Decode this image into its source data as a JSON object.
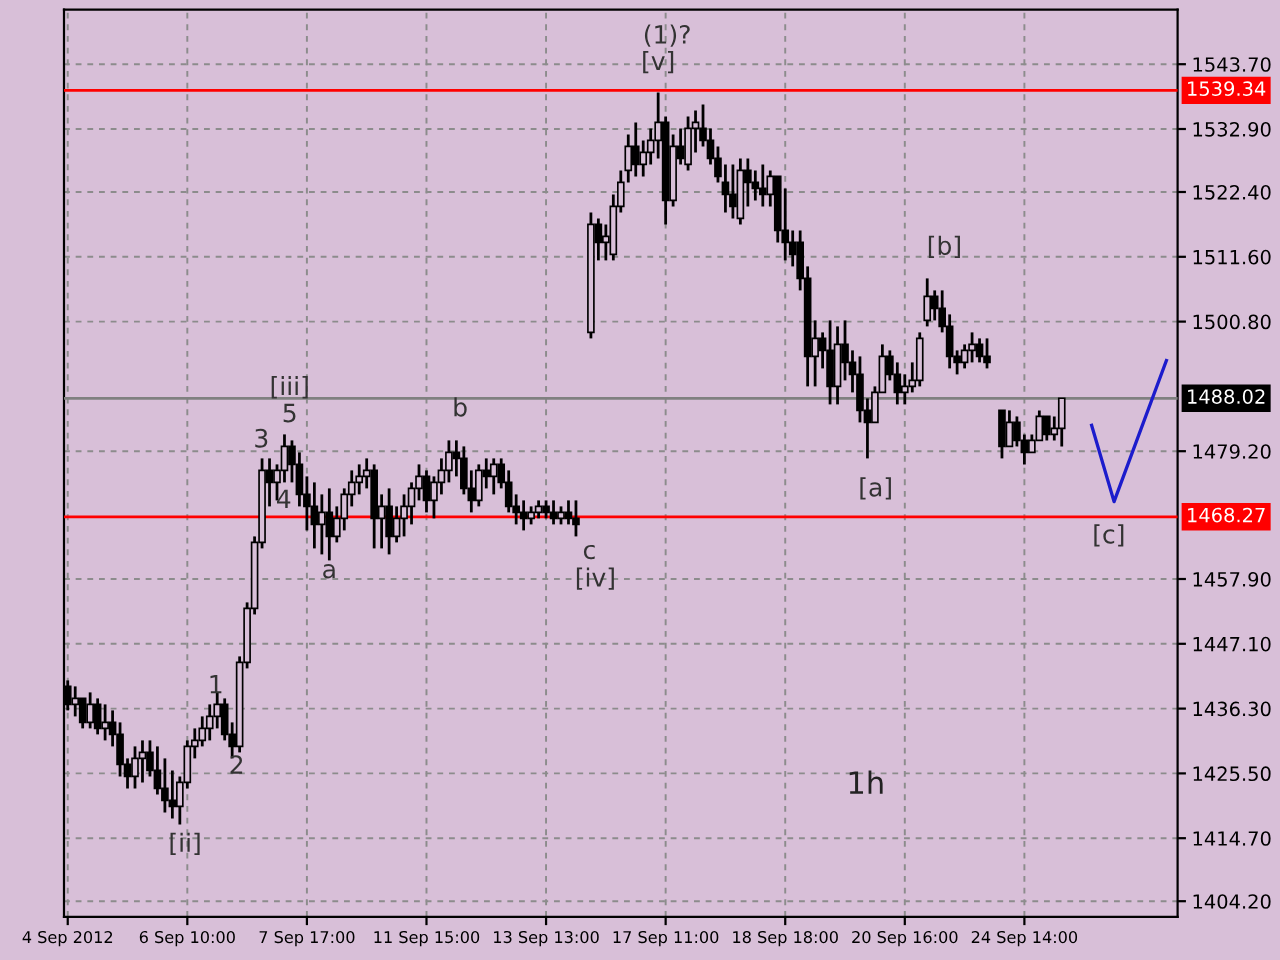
{
  "chart_data": {
    "type": "candlestick",
    "color": "#000000",
    "categories": [
      "4 Sep 2012",
      null,
      null,
      null,
      null,
      null,
      null,
      null,
      null,
      null,
      null,
      null,
      null,
      null,
      null,
      null,
      "6 Sep 10:00",
      null,
      null,
      null,
      null,
      null,
      null,
      null,
      null,
      null,
      null,
      null,
      null,
      null,
      null,
      null,
      "7 Sep 17:00",
      null,
      null,
      null,
      null,
      null,
      null,
      null,
      null,
      null,
      null,
      null,
      null,
      null,
      null,
      null,
      "11 Sep 15:00",
      null,
      null,
      null,
      null,
      null,
      null,
      null,
      null,
      null,
      null,
      null,
      null,
      null,
      null,
      null,
      "13 Sep 13:00",
      null,
      null,
      null,
      null,
      null,
      null,
      null,
      null,
      null,
      null,
      null,
      null,
      null,
      null,
      null,
      "17 Sep 11:00",
      null,
      null,
      null,
      null,
      null,
      null,
      null,
      null,
      null,
      null,
      null,
      null,
      null,
      null,
      null,
      "18 Sep 18:00",
      null,
      null,
      null,
      null,
      null,
      null,
      null,
      null,
      null,
      null,
      null,
      null,
      null,
      null,
      null,
      "20 Sep 16:00",
      null,
      null,
      null,
      null,
      null,
      null,
      null,
      null,
      null,
      null,
      null,
      null,
      null,
      null,
      null,
      "24 Sep 14:00",
      null,
      null,
      null,
      null,
      null,
      null,
      null,
      null,
      null,
      null,
      null,
      null,
      null,
      null,
      null,
      null,
      null,
      null,
      null,
      null
    ],
    "ohlc": [
      [
        1440,
        1441,
        1436,
        1437
      ],
      [
        1437,
        1440,
        1435,
        1438
      ],
      [
        1438,
        1438,
        1433,
        1434
      ],
      [
        1434,
        1439,
        1433,
        1437
      ],
      [
        1437,
        1438,
        1432,
        1433
      ],
      [
        1433,
        1437,
        1431,
        1434
      ],
      [
        1434,
        1436,
        1430,
        1432
      ],
      [
        1432,
        1434,
        1425,
        1427
      ],
      [
        1427,
        1428,
        1423,
        1425
      ],
      [
        1425,
        1430,
        1423,
        1428
      ],
      [
        1428,
        1431,
        1424,
        1429
      ],
      [
        1429,
        1431,
        1425,
        1426
      ],
      [
        1426,
        1430,
        1422,
        1423
      ],
      [
        1423,
        1428,
        1419,
        1421
      ],
      [
        1421,
        1426,
        1418,
        1420
      ],
      [
        1420,
        1425,
        1417,
        1424
      ],
      [
        1424,
        1431,
        1423,
        1430
      ],
      [
        1430,
        1433,
        1428,
        1431
      ],
      [
        1431,
        1435,
        1430,
        1433
      ],
      [
        1433,
        1437,
        1431,
        1435
      ],
      [
        1435,
        1439,
        1433,
        1437
      ],
      [
        1437,
        1438,
        1431,
        1432
      ],
      [
        1432,
        1434,
        1428,
        1430
      ],
      [
        1430,
        1445,
        1429,
        1444
      ],
      [
        1444,
        1454,
        1443,
        1453
      ],
      [
        1453,
        1465,
        1452,
        1464
      ],
      [
        1464,
        1478,
        1463,
        1476
      ],
      [
        1476,
        1478,
        1470,
        1474
      ],
      [
        1474,
        1477,
        1471,
        1476
      ],
      [
        1476,
        1482,
        1474,
        1480
      ],
      [
        1480,
        1481,
        1474,
        1477
      ],
      [
        1477,
        1479,
        1470,
        1472
      ],
      [
        1472,
        1475,
        1466,
        1470
      ],
      [
        1470,
        1474,
        1463,
        1467
      ],
      [
        1467,
        1472,
        1462,
        1469
      ],
      [
        1469,
        1473,
        1461,
        1465
      ],
      [
        1465,
        1470,
        1464,
        1468
      ],
      [
        1468,
        1473,
        1466,
        1472
      ],
      [
        1472,
        1476,
        1470,
        1474
      ],
      [
        1474,
        1477,
        1472,
        1475
      ],
      [
        1475,
        1478,
        1473,
        1476
      ],
      [
        1476,
        1477,
        1463,
        1468
      ],
      [
        1468,
        1472,
        1463,
        1470
      ],
      [
        1470,
        1473,
        1462,
        1465
      ],
      [
        1465,
        1470,
        1464,
        1468
      ],
      [
        1468,
        1472,
        1465,
        1470
      ],
      [
        1470,
        1474,
        1467,
        1473
      ],
      [
        1473,
        1477,
        1471,
        1475
      ],
      [
        1475,
        1476,
        1469,
        1471
      ],
      [
        1471,
        1475,
        1468,
        1474
      ],
      [
        1474,
        1478,
        1472,
        1476
      ],
      [
        1476,
        1481,
        1474,
        1479
      ],
      [
        1479,
        1481,
        1475,
        1478
      ],
      [
        1478,
        1480,
        1472,
        1473
      ],
      [
        1473,
        1476,
        1469,
        1471
      ],
      [
        1471,
        1477,
        1470,
        1476
      ],
      [
        1476,
        1478,
        1473,
        1475
      ],
      [
        1475,
        1478,
        1472,
        1477
      ],
      [
        1477,
        1478,
        1473,
        1474
      ],
      [
        1474,
        1476,
        1469,
        1470
      ],
      [
        1470,
        1472,
        1467,
        1469
      ],
      [
        1469,
        1471,
        1466,
        1468
      ],
      [
        1468,
        1470,
        1467,
        1469
      ],
      [
        1469,
        1471,
        1468,
        1470
      ],
      [
        1470,
        1471,
        1468,
        1469
      ],
      [
        1469,
        1471,
        1467,
        1468
      ],
      [
        1468,
        1470,
        1467,
        1469
      ],
      [
        1469,
        1471,
        1467,
        1468
      ],
      [
        1468,
        1471,
        1465,
        1467
      ],
      null,
      [
        1499,
        1519,
        1498,
        1517
      ],
      [
        1517,
        1518,
        1511,
        1514
      ],
      [
        1514,
        1517,
        1511,
        1515
      ],
      [
        1512,
        1522,
        1511,
        1520
      ],
      [
        1520,
        1526,
        1519,
        1524
      ],
      [
        1526,
        1532,
        1524,
        1530
      ],
      [
        1530,
        1534,
        1525,
        1527
      ],
      [
        1527,
        1531,
        1525,
        1529
      ],
      [
        1529,
        1533,
        1527,
        1531
      ],
      [
        1531,
        1539,
        1528,
        1534
      ],
      [
        1534,
        1535,
        1517,
        1521
      ],
      [
        1521,
        1532,
        1520,
        1530
      ],
      [
        1530,
        1533,
        1527,
        1528
      ],
      [
        1527,
        1535,
        1526,
        1533
      ],
      [
        1533,
        1536,
        1529,
        1534
      ],
      [
        1533,
        1537,
        1530,
        1531
      ],
      [
        1531,
        1533,
        1527,
        1528
      ],
      [
        1528,
        1530,
        1524,
        1525
      ],
      [
        1524,
        1527,
        1519,
        1522
      ],
      [
        1522,
        1527,
        1518,
        1520
      ],
      [
        1518,
        1528,
        1517,
        1526
      ],
      [
        1526,
        1528,
        1520,
        1524
      ],
      [
        1524,
        1526,
        1521,
        1523
      ],
      [
        1523,
        1527,
        1520,
        1522
      ],
      [
        1522,
        1526,
        1520,
        1525
      ],
      [
        1525,
        1525,
        1514,
        1516
      ],
      [
        1516,
        1523,
        1511,
        1514
      ],
      [
        1514,
        1516,
        1510,
        1512
      ],
      [
        1514,
        1516,
        1506,
        1508
      ],
      [
        1508,
        1510,
        1490,
        1495
      ],
      [
        1495,
        1501,
        1490,
        1498
      ],
      [
        1498,
        1499,
        1493,
        1496
      ],
      [
        1496,
        1501,
        1487,
        1490
      ],
      [
        1490,
        1500,
        1487,
        1497
      ],
      [
        1497,
        1501,
        1491,
        1494
      ],
      [
        1494,
        1496,
        1489,
        1492
      ],
      [
        1492,
        1495,
        1484,
        1486
      ],
      [
        1486,
        1488,
        1478,
        1484
      ],
      [
        1484,
        1490,
        1484,
        1489
      ],
      [
        1489,
        1497,
        1489,
        1495
      ],
      [
        1495,
        1496,
        1491,
        1492
      ],
      [
        1492,
        1494,
        1487,
        1489
      ],
      [
        1489,
        1492,
        1487,
        1490
      ],
      [
        1490,
        1494,
        1489,
        1491
      ],
      [
        1491,
        1499,
        1490,
        1498
      ],
      [
        1501,
        1508,
        1500,
        1505
      ],
      [
        1505,
        1506,
        1501,
        1503
      ],
      [
        1503,
        1506,
        1499,
        1500
      ],
      [
        1500,
        1502,
        1493,
        1495
      ],
      [
        1495,
        1496,
        1492,
        1494
      ],
      [
        1494,
        1497,
        1493,
        1496
      ],
      [
        1496,
        1499,
        1494,
        1497
      ],
      [
        1497,
        1498,
        1494,
        1495
      ],
      [
        1495,
        1498,
        1493,
        1494
      ],
      null,
      [
        1486,
        1486,
        1478,
        1480
      ],
      [
        1480,
        1486,
        1480,
        1484
      ],
      [
        1484,
        1485,
        1480,
        1481
      ],
      [
        1481,
        1482,
        1477,
        1479
      ],
      [
        1479,
        1482,
        1479,
        1481
      ],
      [
        1481,
        1486,
        1481,
        1485
      ],
      [
        1485,
        1485,
        1481,
        1482
      ],
      [
        1482,
        1485,
        1481,
        1483
      ],
      [
        1483,
        1488.02,
        1480,
        1488.02
      ],
      null,
      null,
      null,
      null,
      null,
      null,
      null,
      null,
      null,
      null,
      null,
      null,
      null,
      null,
      null
    ],
    "ylim": [
      1401.6,
      1552.8
    ],
    "yticks": [
      {
        "value": 1543.7,
        "label": "1543.70"
      },
      {
        "value": 1532.9,
        "label": "1532.90"
      },
      {
        "value": 1522.4,
        "label": "1522.40"
      },
      {
        "value": 1511.6,
        "label": "1511.60"
      },
      {
        "value": 1500.8,
        "label": "1500.80"
      },
      {
        "value": 1479.2,
        "label": "1479.20"
      },
      {
        "value": 1457.9,
        "label": "1457.90"
      },
      {
        "value": 1447.1,
        "label": "1447.10"
      },
      {
        "value": 1436.3,
        "label": "1436.30"
      },
      {
        "value": 1425.5,
        "label": "1425.50"
      },
      {
        "value": 1414.7,
        "label": "1414.70"
      },
      {
        "value": 1404.2,
        "label": "1404.20"
      }
    ],
    "grid": true,
    "ref_lines": [
      {
        "axis": "y",
        "value": 1539.34,
        "label": "1539.34",
        "color": "#ff0000"
      },
      {
        "axis": "y",
        "value": 1468.27,
        "label": "1468.27",
        "color": "#ff0000"
      },
      {
        "axis": "y",
        "value": 1488.02,
        "label": "1488.02",
        "color": "#808080"
      }
    ],
    "annotations": [
      "[ii]",
      "1",
      "2",
      "3",
      "5",
      "[iii]",
      "4",
      "a",
      {
        "text": "b",
        "y": 1481
      },
      "c",
      "[iv]",
      "(1)?",
      {
        "text": "[v]",
        "y": 1539
      },
      {
        "text": "[a]",
        "y": 1478
      },
      "[b]",
      "[c]",
      "1h"
    ]
  }
}
